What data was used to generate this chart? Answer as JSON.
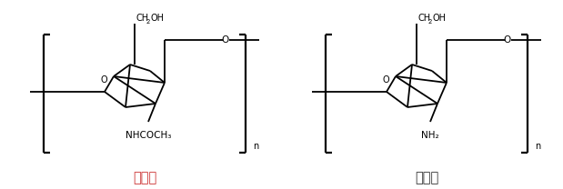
{
  "title_left": "甲壳素",
  "title_right": "壳聚糖",
  "title_color_left": "#cc3333",
  "title_color_right": "#333333",
  "bg_color": "#ffffff",
  "line_color": "#000000",
  "figsize": [
    6.19,
    2.08
  ],
  "dpi": 100,
  "label_NHCOCH3": "NHCOCH",
  "label_NHCOCH3_sub": "3",
  "label_NH2": "NH",
  "label_NH2_sub": "2",
  "label_CH2OH": "CH",
  "label_CH2OH_mid": "2",
  "label_CH2OH_end": "OH",
  "label_O": "O",
  "label_OH": "OH",
  "label_n": "n",
  "font_cn": "SimSun",
  "font_en": "Arial"
}
